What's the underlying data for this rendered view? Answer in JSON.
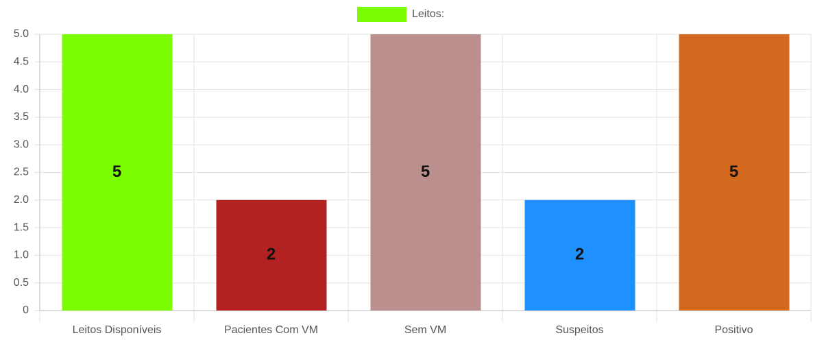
{
  "chart_data": {
    "type": "bar",
    "categories": [
      "Leitos Disponíveis",
      "Pacientes Com VM",
      "Sem VM",
      "Suspeitos",
      "Positivo"
    ],
    "series": [
      {
        "name": "Leitos:",
        "colors": [
          "#7cfc00",
          "#b22222",
          "#bc8f8f",
          "#1e90ff",
          "#d2691e"
        ],
        "values": [
          5,
          2,
          5,
          2,
          5
        ]
      }
    ],
    "ylim": [
      0,
      5
    ],
    "yticks": [
      0,
      0.5,
      {
        "value": 1,
        "label": "1.0"
      },
      1.5,
      {
        "value": 2,
        "label": "2.0"
      },
      2.5,
      {
        "value": 3,
        "label": "3.0"
      },
      3.5,
      {
        "value": 4,
        "label": "4.0"
      },
      4.5,
      {
        "value": 5,
        "label": "5.0"
      }
    ],
    "grid": true,
    "legend": "top"
  }
}
